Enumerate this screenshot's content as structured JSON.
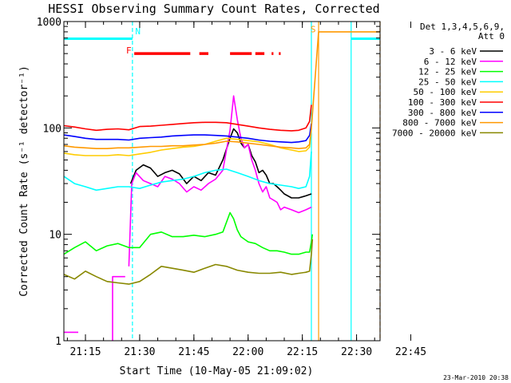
{
  "chart_data": {
    "type": "line",
    "title": "HESSI Observing Summary Count Rates, Corrected",
    "xlabel": "Start Time (10-May-05 21:09:02)",
    "ylabel": "Corrected Count Rate (s⁻¹ detector⁻¹)",
    "yscale": "log",
    "ylim": [
      1,
      1000
    ],
    "xlim_min": [
      9.03,
      96.5
    ],
    "x_ticks": [
      {
        "min": 15,
        "label": "21:15"
      },
      {
        "min": 30,
        "label": "21:30"
      },
      {
        "min": 45,
        "label": "21:45"
      },
      {
        "min": 60,
        "label": "22:00"
      },
      {
        "min": 75,
        "label": "22:15"
      },
      {
        "min": 90,
        "label": "22:30"
      },
      {
        "min": 105,
        "label": "22:45"
      }
    ],
    "y_ticks": [
      {
        "value": 1,
        "label": "1"
      },
      {
        "value": 10,
        "label": "10"
      },
      {
        "value": 100,
        "label": "100"
      },
      {
        "value": 1000,
        "label": "1000"
      }
    ],
    "legend_header": [
      "Det 1,3,4,5,6,9,",
      "Att 0"
    ],
    "legend_position": "right",
    "series": [
      {
        "name": "3 - 6 keV",
        "color": "#000000",
        "x": [
          27.5,
          29,
          31,
          33,
          35,
          37,
          39,
          41,
          43,
          45,
          47,
          49,
          51,
          53,
          55,
          56,
          57,
          58,
          59,
          60,
          61,
          62,
          63,
          64,
          65,
          66,
          67,
          68,
          69,
          70,
          72,
          74,
          76,
          77.5
        ],
        "y": [
          30,
          40,
          45,
          42,
          35,
          38,
          40,
          37,
          30,
          35,
          32,
          38,
          36,
          50,
          80,
          98,
          90,
          72,
          65,
          70,
          55,
          48,
          38,
          40,
          36,
          30,
          30,
          28,
          26,
          24,
          22,
          22,
          23,
          24
        ]
      },
      {
        "name": "6 - 12 keV",
        "color": "#ff00ff",
        "x": [
          9.03,
          13.0,
          13.0,
          22.5,
          22.5,
          26.0,
          26.0,
          27.0,
          27.8,
          29,
          31,
          33,
          35,
          37,
          39,
          41,
          43,
          45,
          47,
          49,
          51,
          53,
          55,
          56,
          57,
          58,
          59,
          60,
          61,
          62,
          63,
          64,
          65,
          66,
          67,
          68,
          69,
          70,
          72,
          74,
          76,
          77.5
        ],
        "y": [
          1.2,
          1.2,
          null,
          1,
          4,
          4,
          null,
          5,
          30,
          38,
          32,
          30,
          28,
          35,
          33,
          30,
          25,
          28,
          26,
          30,
          33,
          40,
          95,
          200,
          120,
          80,
          65,
          70,
          50,
          40,
          30,
          25,
          28,
          22,
          21,
          20,
          17,
          18,
          17,
          16,
          17,
          18
        ]
      },
      {
        "name": "12 - 25 keV",
        "color": "#00ff00",
        "x": [
          9.03,
          12,
          15,
          18,
          21,
          24,
          27,
          30,
          33,
          36,
          39,
          42,
          45,
          48,
          51,
          53,
          55,
          56,
          57,
          58,
          60,
          62,
          64,
          66,
          68,
          70,
          72,
          74,
          76,
          77,
          77.5,
          77.8
        ],
        "y": [
          6.5,
          7.5,
          8.5,
          7,
          7.8,
          8.2,
          7.5,
          7.5,
          10,
          10.5,
          9.5,
          9.5,
          9.8,
          9.5,
          10,
          10.5,
          16,
          14,
          11,
          9.5,
          8.5,
          8.2,
          7.5,
          7,
          7,
          6.8,
          6.5,
          6.5,
          6.8,
          6.8,
          8.5,
          10
        ]
      },
      {
        "name": "25 - 50 keV",
        "color": "#00ffff",
        "x": [
          9.03,
          12,
          15,
          18,
          21,
          24,
          27,
          30,
          33,
          36,
          39,
          42,
          45,
          48,
          51,
          54,
          57,
          60,
          63,
          66,
          69,
          72,
          74,
          76,
          77,
          77.5
        ],
        "y": [
          35,
          30,
          28,
          26,
          27,
          28,
          28,
          27,
          29,
          31,
          32,
          33,
          35,
          38,
          40,
          41,
          38,
          35,
          32,
          30,
          29,
          28,
          27,
          28,
          35,
          60
        ]
      },
      {
        "name": "50 - 100 keV",
        "color": "#ffcc00",
        "x": [
          9.03,
          12,
          15,
          18,
          21,
          24,
          27,
          30,
          33,
          36,
          39,
          42,
          45,
          48,
          51,
          54,
          57,
          60,
          63,
          66,
          69,
          72,
          74,
          76,
          77,
          77.5
        ],
        "y": [
          58,
          56,
          55,
          55,
          55,
          56,
          55,
          57,
          59,
          62,
          64,
          66,
          67,
          70,
          75,
          80,
          78,
          76,
          74,
          70,
          65,
          62,
          60,
          61,
          66,
          100
        ]
      },
      {
        "name": "100 - 300 keV",
        "color": "#ff0000",
        "x": [
          9.03,
          12,
          15,
          18,
          21,
          24,
          27,
          30,
          33,
          36,
          39,
          42,
          45,
          48,
          51,
          54,
          57,
          60,
          63,
          66,
          69,
          72,
          74,
          76,
          77,
          77.5
        ],
        "y": [
          105,
          102,
          98,
          95,
          97,
          98,
          96,
          103,
          104,
          106,
          108,
          110,
          112,
          113,
          113,
          112,
          108,
          104,
          100,
          97,
          95,
          94,
          95,
          100,
          115,
          165
        ]
      },
      {
        "name": "300 - 800 keV",
        "color": "#0000ff",
        "x": [
          9.03,
          12,
          15,
          18,
          21,
          24,
          27,
          30,
          33,
          36,
          39,
          42,
          45,
          48,
          51,
          54,
          57,
          60,
          63,
          66,
          69,
          72,
          74,
          76,
          77,
          77.5
        ],
        "y": [
          86,
          83,
          80,
          78,
          78,
          78,
          77,
          80,
          81,
          82,
          84,
          85,
          86,
          86,
          85,
          84,
          82,
          80,
          77,
          75,
          74,
          73,
          74,
          76,
          85,
          110
        ]
      },
      {
        "name": "800 - 7000 keV",
        "color": "#ff9900",
        "x": [
          9.03,
          12,
          15,
          18,
          21,
          24,
          27,
          30,
          33,
          36,
          39,
          42,
          45,
          48,
          51,
          54,
          57,
          60,
          63,
          66,
          69,
          72,
          74,
          76,
          77,
          77.5,
          79.5,
          79.5,
          96.5
        ],
        "y": [
          68,
          66,
          65,
          64,
          64,
          65,
          65,
          66,
          67,
          67,
          68,
          68,
          69,
          70,
          72,
          75,
          74,
          72,
          70,
          68,
          66,
          65,
          64,
          65,
          70,
          100,
          800,
          800,
          800
        ]
      },
      {
        "name": "7000 - 20000 keV",
        "color": "#888800",
        "x": [
          9.03,
          12,
          15,
          18,
          21,
          24,
          27,
          30,
          33,
          36,
          39,
          42,
          45,
          48,
          51,
          54,
          57,
          60,
          63,
          66,
          69,
          72,
          74,
          76,
          77,
          77.5,
          77.8
        ],
        "y": [
          4.2,
          3.8,
          4.5,
          4.0,
          3.6,
          3.5,
          3.4,
          3.6,
          4.2,
          5.0,
          4.8,
          4.6,
          4.4,
          4.8,
          5.2,
          5.0,
          4.6,
          4.4,
          4.3,
          4.3,
          4.4,
          4.2,
          4.3,
          4.4,
          4.5,
          6.5,
          9
        ]
      }
    ],
    "annotations": [
      {
        "text": "N",
        "color": "#00ffff",
        "min": 29.5,
        "value": 760
      },
      {
        "text": "F",
        "color": "#ff0000",
        "min": 27.0,
        "value": 500
      },
      {
        "text": "S",
        "color": "#ff9900",
        "min": 78.0,
        "value": 790
      }
    ],
    "night_segments": [
      {
        "from": 9.03,
        "to": 28.0,
        "value": 690
      },
      {
        "from": 88.5,
        "to": 96.5,
        "value": 690
      }
    ],
    "flare_segments": [
      {
        "from": 28.5,
        "to": 44.0
      },
      {
        "from": 46.5,
        "to": 49.0
      },
      {
        "from": 55.0,
        "to": 61.0
      },
      {
        "from": 62.0,
        "to": 64.5
      },
      {
        "from": 66.5,
        "to": 67.0
      },
      {
        "from": 68.5,
        "to": 69.0
      }
    ],
    "vertical_markers": [
      {
        "min": 28.0,
        "color": "#00ffff",
        "style": "dashed"
      },
      {
        "min": 77.5,
        "color": "#00ffff",
        "style": "solid"
      },
      {
        "min": 79.5,
        "color": "#ff9900",
        "style": "solid"
      },
      {
        "min": 88.5,
        "color": "#00ffff",
        "style": "solid"
      },
      {
        "min": 96.5,
        "color": "#ff9900",
        "style": "dashed"
      }
    ],
    "footer_stamp": "23-Mar-2010 20:38"
  }
}
